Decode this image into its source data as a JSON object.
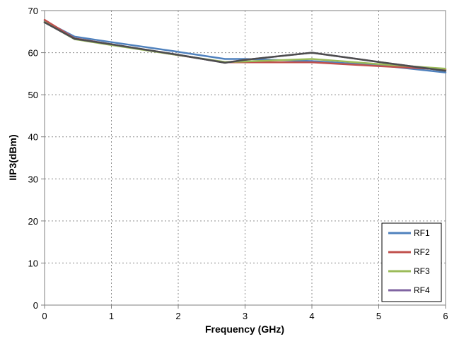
{
  "chart_data": {
    "type": "line",
    "title": "",
    "xlabel": "Frequency (GHz)",
    "ylabel": "IIP3(dBm)",
    "xlim": [
      0,
      6
    ],
    "ylim": [
      0,
      70
    ],
    "xticks": [
      "0",
      "1",
      "2",
      "3",
      "4",
      "5",
      "6"
    ],
    "yticks": [
      "0",
      "10",
      "20",
      "30",
      "40",
      "50",
      "60",
      "70"
    ],
    "grid": true,
    "legend_position": "bottom-right",
    "series": [
      {
        "name": "RF1",
        "color": "#4f81bd",
        "x": [
          0,
          0.45,
          1,
          2,
          2.7,
          3,
          4,
          5,
          6
        ],
        "y": [
          67.5,
          63.8,
          62.5,
          60.2,
          58.5,
          58.5,
          58.0,
          57.0,
          55.3
        ]
      },
      {
        "name": "RF2",
        "color": "#c0504d",
        "x": [
          0,
          0.45,
          1,
          2,
          2.7,
          3,
          4,
          5,
          6
        ],
        "y": [
          67.8,
          63.4,
          62.0,
          59.4,
          57.7,
          57.7,
          57.7,
          56.8,
          56.0
        ]
      },
      {
        "name": "RF3",
        "color": "#9bbb59",
        "x": [
          0,
          0.45,
          1,
          2,
          2.7,
          3,
          4,
          5,
          6
        ],
        "y": [
          67.3,
          63.2,
          61.8,
          59.4,
          57.8,
          57.9,
          58.5,
          57.3,
          56.2
        ]
      },
      {
        "name": "RF4",
        "color": "#8064a2",
        "x": [
          0,
          0.45,
          1,
          2,
          2.7,
          3,
          4,
          5,
          6
        ],
        "y": [
          67.2,
          63.3,
          62.0,
          59.5,
          57.6,
          58.3,
          60.0,
          57.8,
          55.7
        ]
      },
      {
        "name": "",
        "color": "#4d4d4d",
        "x": [
          0,
          0.45,
          1,
          2,
          2.7,
          3,
          4,
          5,
          6
        ],
        "y": [
          67.2,
          63.3,
          62.0,
          59.5,
          57.6,
          58.3,
          60.0,
          57.8,
          55.7
        ]
      }
    ]
  }
}
